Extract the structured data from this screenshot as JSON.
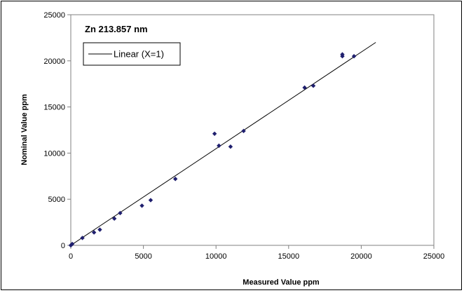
{
  "chart_data": {
    "type": "scatter",
    "title": "Zn 213.857 nm",
    "xlabel": "Measured Value ppm",
    "ylabel": "Nominal Value ppm",
    "xlim": [
      0,
      25000
    ],
    "ylim": [
      0,
      25000
    ],
    "x_ticks": [
      "0",
      "5000",
      "10000",
      "15000",
      "20000",
      "25000"
    ],
    "y_ticks": [
      "0",
      "5000",
      "10000",
      "15000",
      "20000",
      "25000"
    ],
    "grid": false,
    "legend_position": "top-left",
    "legend": {
      "label": "Linear (X=1)"
    },
    "series": [
      {
        "type": "scatter",
        "marker": "diamond",
        "color": "#1f1f6e",
        "points": [
          [
            0,
            0
          ],
          [
            100,
            150
          ],
          [
            800,
            800
          ],
          [
            1600,
            1400
          ],
          [
            2000,
            1700
          ],
          [
            3000,
            2900
          ],
          [
            3400,
            3500
          ],
          [
            4900,
            4300
          ],
          [
            5500,
            4900
          ],
          [
            7200,
            7200
          ],
          [
            9900,
            12100
          ],
          [
            10200,
            10800
          ],
          [
            11000,
            10700
          ],
          [
            11900,
            12400
          ],
          [
            16100,
            17100
          ],
          [
            16700,
            17300
          ],
          [
            18700,
            20500
          ],
          [
            18700,
            20700
          ],
          [
            19500,
            20500
          ]
        ]
      },
      {
        "name": "Linear (X=1)",
        "type": "line",
        "color": "#000000",
        "points": [
          [
            0,
            0
          ],
          [
            21000,
            22000
          ]
        ]
      }
    ]
  }
}
